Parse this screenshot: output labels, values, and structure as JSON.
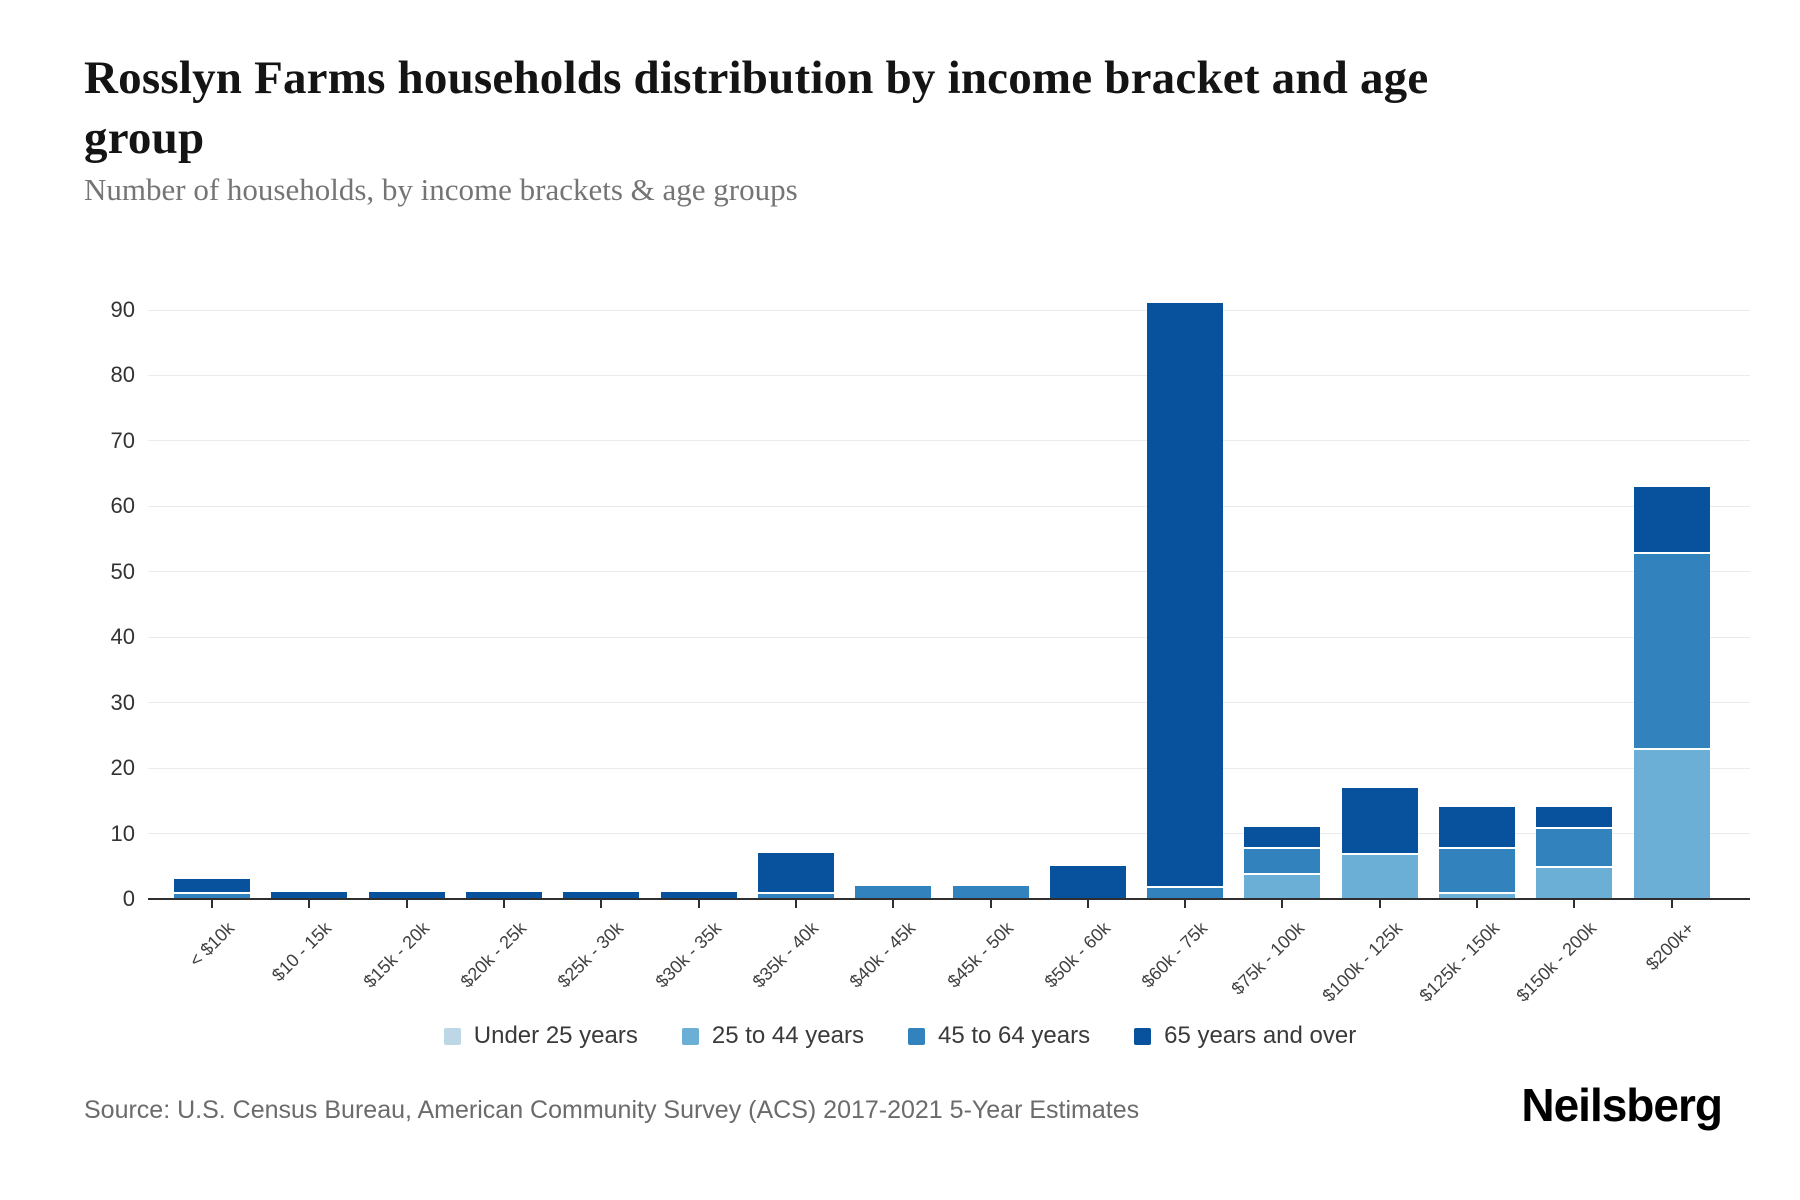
{
  "title": "Rosslyn Farms households distribution by income bracket and age group",
  "subtitle": "Number of households, by income brackets & age groups",
  "source": "Source: U.S. Census Bureau, American Community Survey (ACS) 2017-2021 5-Year Estimates",
  "logo": "Neilsberg",
  "chart_data": {
    "type": "bar",
    "stacked": true,
    "title": "Rosslyn Farms households distribution by income bracket and age group",
    "subtitle": "Number of households, by income brackets & age groups",
    "xlabel": "",
    "ylabel": "Number of households",
    "ylim": [
      0,
      95
    ],
    "yticks": [
      0,
      10,
      20,
      30,
      40,
      50,
      60,
      70,
      80,
      90
    ],
    "grid": true,
    "legend_position": "bottom",
    "categories": [
      "< $10k",
      "$10 - 15k",
      "$15k - 20k",
      "$20k - 25k",
      "$25k - 30k",
      "$30k - 35k",
      "$35k - 40k",
      "$40k - 45k",
      "$45k - 50k",
      "$50k - 60k",
      "$60k - 75k",
      "$75k - 100k",
      "$100k - 125k",
      "$125k - 150k",
      "$150k - 200k",
      "$200k+"
    ],
    "series": [
      {
        "name": "Under 25 years",
        "color": "#bdd7e7",
        "values": [
          0,
          0,
          0,
          0,
          0,
          0,
          0,
          0,
          0,
          0,
          0,
          0,
          0,
          0,
          0,
          0
        ]
      },
      {
        "name": "25 to 44 years",
        "color": "#6baed6",
        "values": [
          0,
          0,
          0,
          0,
          0,
          0,
          0,
          0,
          0,
          0,
          0,
          4,
          7,
          1,
          5,
          23
        ]
      },
      {
        "name": "45 to 64 years",
        "color": "#3182bd",
        "values": [
          1,
          0,
          0,
          0,
          0,
          0,
          1,
          2,
          2,
          0,
          2,
          4,
          0,
          7,
          6,
          30
        ]
      },
      {
        "name": "65 years and over",
        "color": "#08519c",
        "values": [
          2,
          1,
          1,
          1,
          1,
          1,
          6,
          0,
          0,
          5,
          89,
          3,
          10,
          6,
          3,
          10
        ]
      }
    ],
    "totals": [
      3,
      1,
      1,
      1,
      1,
      1,
      7,
      2,
      2,
      5,
      91,
      11,
      17,
      14,
      14,
      63
    ]
  },
  "colors": {
    "axis": "#2f2f2f",
    "gridline": "#ebebeb",
    "title_text": "#141414",
    "subtitle_text": "#757575"
  }
}
